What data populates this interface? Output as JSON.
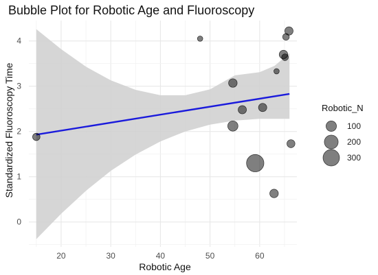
{
  "chart_data": {
    "type": "scatter",
    "title": "Bubble Plot for Robotic Age and Fluoroscopy",
    "xlabel": "Robotic Age",
    "ylabel": "Standardized Fluoroscopy Time",
    "xlim": [
      13.5,
      67.5
    ],
    "ylim": [
      -0.55,
      4.45
    ],
    "x_ticks": [
      20,
      30,
      40,
      50,
      60
    ],
    "y_ticks": [
      0,
      1,
      2,
      3,
      4
    ],
    "grid": true,
    "points": [
      {
        "x": 15.0,
        "y": 1.88,
        "size": 40
      },
      {
        "x": 48.0,
        "y": 4.05,
        "size": 15
      },
      {
        "x": 54.6,
        "y": 3.07,
        "size": 60
      },
      {
        "x": 54.6,
        "y": 2.12,
        "size": 95
      },
      {
        "x": 56.5,
        "y": 2.48,
        "size": 55
      },
      {
        "x": 59.1,
        "y": 1.3,
        "size": 340
      },
      {
        "x": 60.6,
        "y": 2.53,
        "size": 55
      },
      {
        "x": 62.9,
        "y": 0.63,
        "size": 60
      },
      {
        "x": 63.4,
        "y": 3.33,
        "size": 15
      },
      {
        "x": 64.8,
        "y": 3.7,
        "size": 60
      },
      {
        "x": 65.1,
        "y": 3.64,
        "size": 30
      },
      {
        "x": 65.3,
        "y": 4.09,
        "size": 30
      },
      {
        "x": 65.9,
        "y": 4.22,
        "size": 55
      },
      {
        "x": 66.3,
        "y": 1.73,
        "size": 50
      }
    ],
    "trend": {
      "x": [
        15.0,
        66.0
      ],
      "y": [
        1.93,
        2.83
      ]
    },
    "band": {
      "x": [
        15,
        20,
        25,
        30,
        35,
        40,
        45,
        50,
        55,
        60,
        63,
        66
      ],
      "lower": [
        -0.38,
        0.18,
        0.69,
        1.13,
        1.49,
        1.78,
        2.0,
        2.15,
        2.24,
        2.28,
        2.28,
        2.28
      ],
      "upper": [
        4.26,
        3.82,
        3.43,
        3.13,
        2.92,
        2.8,
        2.8,
        2.93,
        3.24,
        3.31,
        3.45,
        3.73
      ]
    },
    "legend": {
      "title": "Robotic_N",
      "position": "right",
      "entries": [
        {
          "label": "100",
          "size": 100
        },
        {
          "label": "200",
          "size": 200
        },
        {
          "label": "300",
          "size": 300
        }
      ]
    },
    "colors": {
      "point": "#000000",
      "trend": "#1a1adc",
      "band": "#cfcfcf"
    }
  }
}
